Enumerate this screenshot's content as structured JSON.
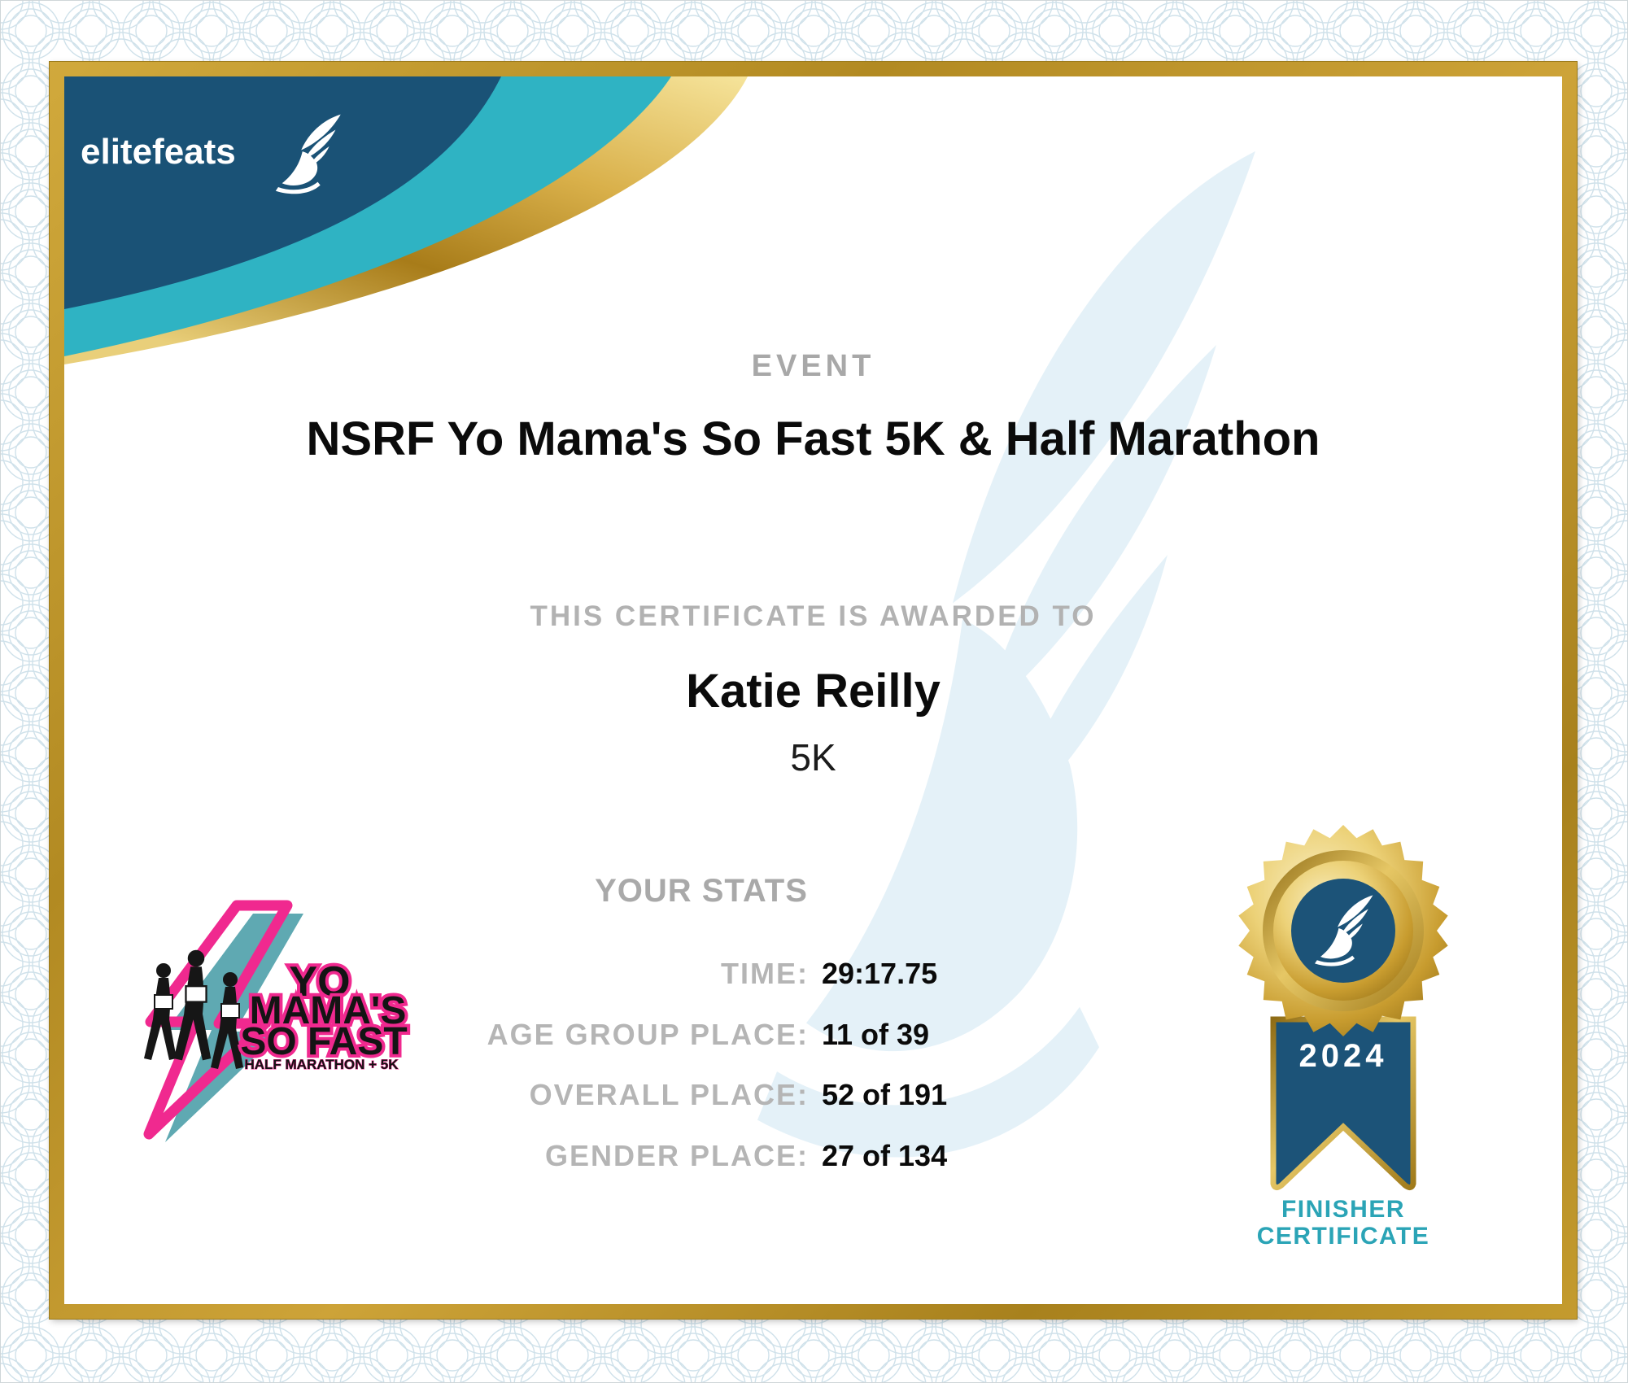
{
  "brand": {
    "logo_text": "elitefeats"
  },
  "event": {
    "section_label": "EVENT",
    "title": "NSRF Yo Mama's So Fast 5K & Half Marathon"
  },
  "award": {
    "intro": "THIS CERTIFICATE IS AWARDED TO",
    "recipient": "Katie Reilly",
    "division": "5K"
  },
  "stats": {
    "heading": "YOUR STATS",
    "rows": [
      {
        "label": "TIME:",
        "value": "29:17.75"
      },
      {
        "label": "AGE GROUP PLACE:",
        "value": "11 of 39"
      },
      {
        "label": "OVERALL PLACE:",
        "value": "52 of 191"
      },
      {
        "label": "GENDER PLACE:",
        "value": "27 of 134"
      }
    ]
  },
  "race_logo": {
    "line1": "YO",
    "line2": "MAMA'S",
    "line3": "SO FAST",
    "line4": "HALF MARATHON + 5K"
  },
  "badge": {
    "year": "2024",
    "caption_line1": "FINISHER",
    "caption_line2": "CERTIFICATE"
  },
  "colors": {
    "navy": "#1a5276",
    "teal": "#2fb3c3",
    "gold": "#c79f33",
    "pink": "#f0298f",
    "finisher_teal": "#2ba4b6",
    "label_gray": "#b2b2b2",
    "watermark_blue": "#e4f1f8"
  }
}
